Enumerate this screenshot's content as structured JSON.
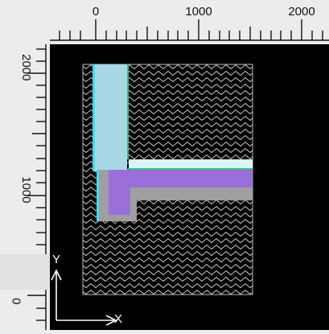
{
  "ruler": {
    "x_ticks": [
      "0",
      "1000",
      "2000"
    ],
    "y_ticks": [
      "2000",
      "1000",
      "0"
    ]
  },
  "axes": {
    "x_label": "X",
    "y_label": "Y"
  },
  "colors": {
    "canvas": "#000000",
    "ruler": "#ececec",
    "hatch": "#cfcfcf",
    "insulation": "#a8d8e6",
    "cyan_edge": "#35e0f0",
    "green_edge": "#2ec27e",
    "slab": "#9b6fd9",
    "concrete": "#9f9f9f",
    "light_layer": "#d8f7f7"
  }
}
